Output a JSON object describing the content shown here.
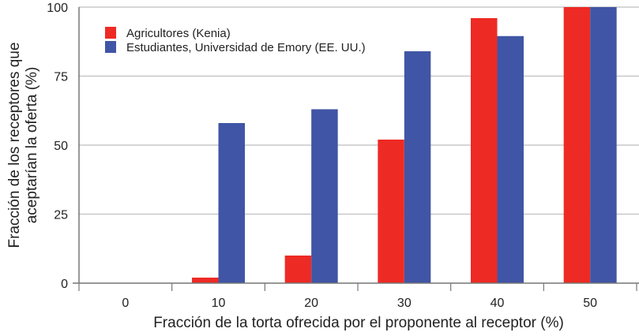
{
  "chart_data": {
    "type": "bar",
    "title": "",
    "xlabel": "Fracción de la torta ofrecida por el proponente al receptor (%)",
    "ylabel_lines": [
      "Fracción de los receptores que",
      "aceptarían la oferta (%)"
    ],
    "categories": [
      "0",
      "10",
      "20",
      "30",
      "40",
      "50"
    ],
    "ylim": [
      0,
      100
    ],
    "yticks": [
      0,
      25,
      50,
      75,
      100
    ],
    "grid": true,
    "legend_position": "top-left",
    "series": [
      {
        "name": "Agricultores (Kenia)",
        "color": "#ee2a24",
        "values": [
          0,
          2,
          10,
          52,
          96,
          100
        ]
      },
      {
        "name": "Estudiantes, Universidad de Emory (EE. UU.)",
        "color": "#4055a5",
        "values": [
          0,
          58,
          63,
          84,
          89.5,
          100
        ]
      }
    ]
  }
}
